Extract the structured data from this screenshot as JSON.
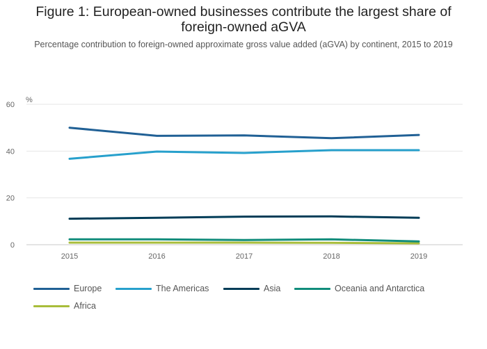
{
  "figure": {
    "title": "Figure 1: European-owned businesses contribute the largest share of foreign-owned aGVA",
    "subtitle": "Percentage contribution to foreign-owned approximate gross value added (aGVA) by continent, 2015 to 2019"
  },
  "chart_data": {
    "type": "line",
    "title": "Figure 1: European-owned businesses contribute the largest share of foreign-owned aGVA",
    "subtitle": "Percentage contribution to foreign-owned approximate gross value added (aGVA) by continent, 2015 to 2019",
    "xlabel": "",
    "ylabel": "%",
    "x": [
      "2015",
      "2016",
      "2017",
      "2018",
      "2019"
    ],
    "ylim": [
      0,
      60
    ],
    "yticks": [
      0,
      20,
      40,
      60
    ],
    "grid": true,
    "legend_position": "bottom",
    "series": [
      {
        "name": "Europe",
        "color": "#206095",
        "values": [
          50.0,
          46.5,
          46.7,
          45.5,
          46.9
        ]
      },
      {
        "name": "The Americas",
        "color": "#27a0cc",
        "values": [
          36.7,
          39.8,
          39.2,
          40.4,
          40.4
        ]
      },
      {
        "name": "Asia",
        "color": "#003c57",
        "values": [
          11.1,
          11.5,
          12.0,
          12.1,
          11.5
        ]
      },
      {
        "name": "Oceania and Antarctica",
        "color": "#118c7b",
        "values": [
          2.3,
          2.3,
          2.0,
          2.3,
          1.4
        ]
      },
      {
        "name": "Africa",
        "color": "#a8bd3a",
        "values": [
          0.9,
          0.9,
          0.9,
          0.8,
          0.6
        ]
      }
    ]
  }
}
